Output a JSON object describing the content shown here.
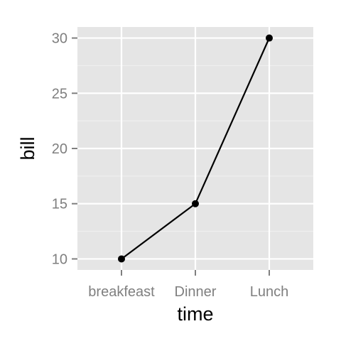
{
  "chart_data": {
    "type": "line",
    "categories": [
      "breakfeast",
      "Dinner",
      "Lunch"
    ],
    "values": [
      10,
      15,
      30
    ],
    "xlabel": "time",
    "ylabel": "bill",
    "ylim": [
      9,
      31
    ],
    "yticks": [
      10,
      15,
      20,
      25,
      30
    ],
    "ytick_labels": [
      "10",
      "15",
      "20",
      "25",
      "30"
    ],
    "grid": true,
    "legend": "none",
    "colors": {
      "panel_background": "#e5e5e5",
      "major_grid": "#ffffff",
      "minor_grid": "#f2f2f2",
      "line": "#000000",
      "point": "#000000",
      "tick_text": "#7f7f7f",
      "tick_mark": "#7f7f7f"
    }
  }
}
